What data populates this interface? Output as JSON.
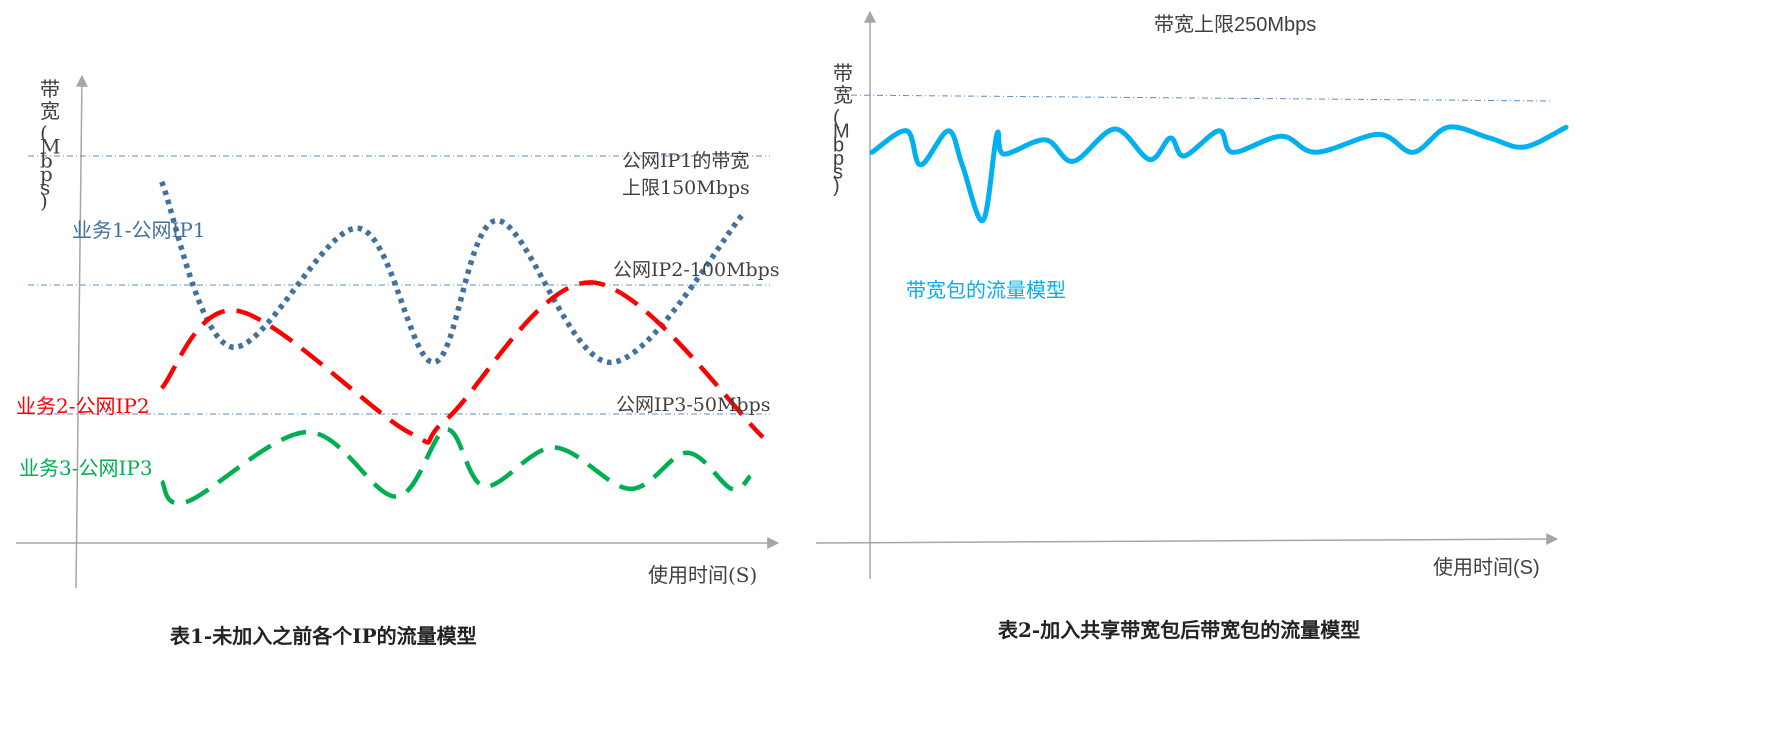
{
  "colors": {
    "axis": "#a6a6a6",
    "limit_line": "#5b8fc7",
    "text": "#404040",
    "ip1": "#41719c",
    "ip2": "#ff0000",
    "ip3": "#00b050",
    "shared": "#00b0f0"
  },
  "chart_data": [
    {
      "type": "line",
      "ylabel": "带宽(Mbps)",
      "xlabel": "使用时间(S)",
      "caption": "表1-未加入之前各个IP的流量模型",
      "ylim": [
        0,
        200
      ],
      "limits": [
        {
          "label_lines": [
            "公网IP1的带宽",
            "上限150Mbps"
          ],
          "value": 150
        },
        {
          "label_lines": [
            "公网IP2-100Mbps"
          ],
          "value": 100
        },
        {
          "label_lines": [
            "公网IP3-50Mbps"
          ],
          "value": 50
        }
      ],
      "series": [
        {
          "name": "业务1-公网IP1",
          "style": "dotted",
          "color": "#41719c",
          "points": [
            [
              0.05,
              140
            ],
            [
              0.16,
              76
            ],
            [
              0.36,
              122
            ],
            [
              0.48,
              70
            ],
            [
              0.58,
              125
            ],
            [
              0.76,
              70
            ],
            [
              0.97,
              128
            ]
          ]
        },
        {
          "name": "业务2-公网IP2",
          "style": "dashed",
          "color": "#ff0000",
          "points": [
            [
              0.05,
              60
            ],
            [
              0.17,
              90
            ],
            [
              0.44,
              43
            ],
            [
              0.5,
              48
            ],
            [
              0.73,
              101
            ],
            [
              1.0,
              41
            ]
          ]
        },
        {
          "name": "业务3-公网IP3",
          "style": "dashed",
          "color": "#00b050",
          "points": [
            [
              0.05,
              24
            ],
            [
              0.09,
              16
            ],
            [
              0.28,
              43
            ],
            [
              0.42,
              18
            ],
            [
              0.5,
              44
            ],
            [
              0.56,
              22
            ],
            [
              0.67,
              37
            ],
            [
              0.79,
              21
            ],
            [
              0.88,
              35
            ],
            [
              0.95,
              21
            ],
            [
              0.98,
              26
            ]
          ]
        }
      ]
    },
    {
      "type": "line",
      "ylabel": "带宽(Mbps)",
      "xlabel": "使用时间(S)",
      "caption": "表2-加入共享带宽包后带宽包的流量模型",
      "ylim": [
        0,
        300
      ],
      "limits": [
        {
          "label_lines": [
            "带宽上限250Mbps"
          ],
          "value": 250
        }
      ],
      "series": [
        {
          "name": "带宽包的流量模型",
          "style": "solid",
          "color": "#00b0f0",
          "points": [
            [
              0.0,
              218
            ],
            [
              0.05,
              230
            ],
            [
              0.07,
              211
            ],
            [
              0.11,
              230
            ],
            [
              0.13,
              211
            ],
            [
              0.16,
              180
            ],
            [
              0.18,
              228
            ],
            [
              0.19,
              217
            ],
            [
              0.25,
              225
            ],
            [
              0.29,
              213
            ],
            [
              0.35,
              231
            ],
            [
              0.4,
              214
            ],
            [
              0.43,
              226
            ],
            [
              0.45,
              216
            ],
            [
              0.5,
              230
            ],
            [
              0.52,
              218
            ],
            [
              0.59,
              227
            ],
            [
              0.64,
              218
            ],
            [
              0.73,
              228
            ],
            [
              0.78,
              218
            ],
            [
              0.83,
              232
            ],
            [
              0.89,
              226
            ],
            [
              0.94,
              221
            ],
            [
              1.0,
              232
            ]
          ]
        }
      ]
    }
  ]
}
